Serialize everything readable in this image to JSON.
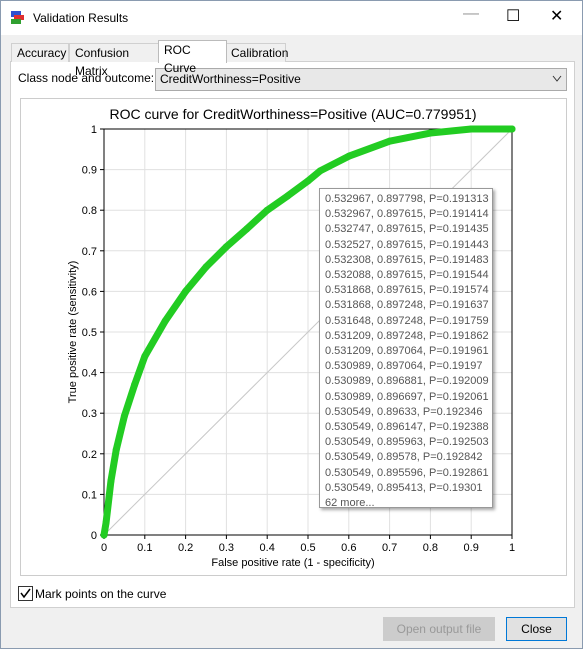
{
  "window": {
    "title": "Validation Results"
  },
  "tabs": [
    "Accuracy",
    "Confusion Matrix",
    "ROC Curve",
    "Calibration"
  ],
  "selector": {
    "label": "Class node and outcome:",
    "value": "CreditWorthiness=Positive"
  },
  "chart_data": {
    "type": "line",
    "title": "ROC curve for CreditWorthiness=Positive (AUC=0.779951)",
    "xlabel": "False positive rate (1 - specificity)",
    "ylabel": "True positive rate (sensitivity)",
    "x": [
      0,
      0.005,
      0.017,
      0.03,
      0.05,
      0.075,
      0.1,
      0.15,
      0.2,
      0.25,
      0.3,
      0.35,
      0.4,
      0.45,
      0.5,
      0.53,
      0.6,
      0.7,
      0.8,
      0.9,
      1
    ],
    "series": [
      {
        "name": "ROC",
        "color": "#22cc22",
        "values": [
          0,
          0.03,
          0.133,
          0.21,
          0.293,
          0.37,
          0.44,
          0.527,
          0.6,
          0.66,
          0.71,
          0.754,
          0.8,
          0.835,
          0.872,
          0.897,
          0.933,
          0.97,
          0.99,
          1,
          1
        ]
      }
    ],
    "reference_color": "#c8c8c8",
    "xlim": [
      0,
      1
    ],
    "ylim": [
      0,
      1
    ],
    "xticks": [
      0,
      0.1,
      0.2,
      0.3,
      0.4,
      0.5,
      0.6,
      0.7,
      0.8,
      0.9,
      1
    ],
    "yticks": [
      0,
      0.1,
      0.2,
      0.3,
      0.4,
      0.5,
      0.6,
      0.7,
      0.8,
      0.9,
      1
    ],
    "grid": true
  },
  "tooltip": {
    "lines": [
      "0.532967, 0.897798, P=0.191313",
      "0.532967, 0.897615, P=0.191414",
      "0.532747, 0.897615, P=0.191435",
      "0.532527, 0.897615, P=0.191443",
      "0.532308, 0.897615, P=0.191483",
      "0.532088, 0.897615, P=0.191544",
      "0.531868, 0.897615, P=0.191574",
      "0.531868, 0.897248, P=0.191637",
      "0.531648, 0.897248, P=0.191759",
      "0.531209, 0.897248, P=0.191862",
      "0.531209, 0.897064, P=0.191961",
      "0.530989, 0.897064, P=0.19197",
      "0.530989, 0.896881, P=0.192009",
      "0.530989, 0.896697, P=0.192061",
      "0.530549, 0.89633, P=0.192346",
      "0.530549, 0.896147, P=0.192388",
      "0.530549, 0.895963, P=0.192503",
      "0.530549, 0.89578, P=0.192842",
      "0.530549, 0.895596, P=0.192861",
      "0.530549, 0.895413, P=0.19301"
    ],
    "more": "62 more..."
  },
  "checkbox": {
    "label": "Mark points on the curve",
    "checked": true
  },
  "buttons": {
    "open": "Open output file",
    "close": "Close"
  }
}
